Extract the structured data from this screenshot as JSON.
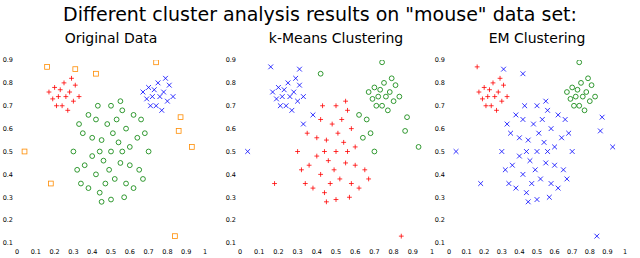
{
  "title": "Different cluster analysis results on \"mouse\" data set:",
  "chart_data": [
    {
      "type": "scatter",
      "title": "Original Data",
      "xlim": [
        0,
        1
      ],
      "ylim": [
        0.1,
        0.9
      ],
      "xticks": [
        0,
        0.1,
        0.2,
        0.3,
        0.4,
        0.5,
        0.6,
        0.7,
        0.8,
        0.9,
        1
      ],
      "yticks": [
        0.1,
        0.2,
        0.3,
        0.4,
        0.5,
        0.6,
        0.7,
        0.8,
        0.9
      ],
      "series": [
        {
          "color": "#ff0000",
          "marker": "plus",
          "x": [
            0.2,
            0.22,
            0.25,
            0.28,
            0.3,
            0.24,
            0.19,
            0.27,
            0.31,
            0.23,
            0.26,
            0.21,
            0.29,
            0.17,
            0.33
          ],
          "values": [
            0.78,
            0.74,
            0.8,
            0.76,
            0.72,
            0.7,
            0.73,
            0.68,
            0.79,
            0.77,
            0.74,
            0.7,
            0.82,
            0.76,
            0.74
          ]
        },
        {
          "color": "#0000ff",
          "marker": "x",
          "x": [
            0.7,
            0.72,
            0.75,
            0.78,
            0.8,
            0.74,
            0.69,
            0.77,
            0.81,
            0.73,
            0.76,
            0.71,
            0.79,
            0.67,
            0.83
          ],
          "values": [
            0.78,
            0.74,
            0.8,
            0.76,
            0.72,
            0.7,
            0.73,
            0.68,
            0.79,
            0.77,
            0.74,
            0.7,
            0.82,
            0.76,
            0.74
          ]
        },
        {
          "color": "#008000",
          "marker": "circle",
          "x": [
            0.5,
            0.45,
            0.55,
            0.4,
            0.6,
            0.48,
            0.52,
            0.35,
            0.65,
            0.42,
            0.58,
            0.3,
            0.7,
            0.5,
            0.5,
            0.38,
            0.62,
            0.34,
            0.66,
            0.44,
            0.56,
            0.46,
            0.54,
            0.36,
            0.64,
            0.42,
            0.58,
            0.32,
            0.68,
            0.47,
            0.53,
            0.4,
            0.6,
            0.44,
            0.56,
            0.38,
            0.62,
            0.49,
            0.51,
            0.33,
            0.67,
            0.45,
            0.55,
            0.57,
            0.43
          ],
          "values": [
            0.5,
            0.55,
            0.45,
            0.48,
            0.52,
            0.62,
            0.38,
            0.58,
            0.42,
            0.4,
            0.6,
            0.5,
            0.5,
            0.7,
            0.29,
            0.66,
            0.34,
            0.36,
            0.64,
            0.32,
            0.68,
            0.46,
            0.54,
            0.44,
            0.56,
            0.64,
            0.36,
            0.42,
            0.58,
            0.36,
            0.64,
            0.56,
            0.44,
            0.5,
            0.5,
            0.34,
            0.66,
            0.42,
            0.58,
            0.62,
            0.38,
            0.28,
            0.72,
            0.3,
            0.7
          ]
        },
        {
          "color": "#ff8c00",
          "marker": "square",
          "x": [
            0.16,
            0.31,
            0.42,
            0.74,
            0.87,
            0.86,
            0.93,
            0.04,
            0.18,
            0.84
          ],
          "values": [
            0.87,
            0.86,
            0.84,
            0.89,
            0.65,
            0.59,
            0.52,
            0.5,
            0.36,
            0.13
          ]
        }
      ]
    },
    {
      "type": "scatter",
      "title": "k-Means Clustering",
      "xlim": [
        0,
        1
      ],
      "ylim": [
        0.1,
        0.9
      ],
      "xticks": [
        0,
        0.1,
        0.2,
        0.3,
        0.4,
        0.5,
        0.6,
        0.7,
        0.8,
        0.9,
        1
      ],
      "yticks": [
        0.1,
        0.2,
        0.3,
        0.4,
        0.5,
        0.6,
        0.7,
        0.8,
        0.9
      ],
      "series": [
        {
          "color": "#0000ff",
          "marker": "x",
          "x": [
            0.2,
            0.22,
            0.25,
            0.28,
            0.3,
            0.24,
            0.19,
            0.27,
            0.31,
            0.23,
            0.26,
            0.21,
            0.29,
            0.17,
            0.33,
            0.16,
            0.31,
            0.04,
            0.38,
            0.33
          ],
          "values": [
            0.78,
            0.74,
            0.8,
            0.76,
            0.72,
            0.7,
            0.73,
            0.68,
            0.79,
            0.77,
            0.74,
            0.7,
            0.82,
            0.76,
            0.74,
            0.87,
            0.86,
            0.5,
            0.66,
            0.62
          ]
        },
        {
          "color": "#008000",
          "marker": "circle",
          "x": [
            0.7,
            0.72,
            0.75,
            0.78,
            0.8,
            0.74,
            0.69,
            0.77,
            0.81,
            0.73,
            0.76,
            0.71,
            0.79,
            0.67,
            0.83,
            0.42,
            0.74,
            0.87,
            0.86,
            0.93,
            0.66,
            0.68,
            0.62,
            0.64,
            0.7
          ],
          "values": [
            0.78,
            0.74,
            0.8,
            0.76,
            0.72,
            0.7,
            0.73,
            0.68,
            0.79,
            0.77,
            0.74,
            0.7,
            0.82,
            0.76,
            0.74,
            0.84,
            0.89,
            0.65,
            0.59,
            0.52,
            0.64,
            0.58,
            0.66,
            0.56,
            0.5
          ]
        },
        {
          "color": "#ff0000",
          "marker": "plus",
          "x": [
            0.5,
            0.45,
            0.55,
            0.4,
            0.6,
            0.48,
            0.52,
            0.35,
            0.65,
            0.42,
            0.58,
            0.3,
            0.5,
            0.5,
            0.62,
            0.34,
            0.44,
            0.56,
            0.46,
            0.54,
            0.36,
            0.42,
            0.58,
            0.32,
            0.47,
            0.53,
            0.4,
            0.6,
            0.44,
            0.56,
            0.38,
            0.49,
            0.51,
            0.67,
            0.45,
            0.55,
            0.57,
            0.43,
            0.18,
            0.84
          ],
          "values": [
            0.5,
            0.55,
            0.45,
            0.48,
            0.52,
            0.62,
            0.38,
            0.58,
            0.42,
            0.4,
            0.6,
            0.5,
            0.7,
            0.29,
            0.34,
            0.36,
            0.32,
            0.68,
            0.46,
            0.54,
            0.44,
            0.64,
            0.36,
            0.42,
            0.36,
            0.64,
            0.56,
            0.44,
            0.5,
            0.5,
            0.34,
            0.42,
            0.58,
            0.38,
            0.28,
            0.72,
            0.3,
            0.7,
            0.36,
            0.13
          ]
        }
      ]
    },
    {
      "type": "scatter",
      "title": "EM Clustering",
      "xlim": [
        0,
        1
      ],
      "ylim": [
        0.1,
        0.9
      ],
      "xticks": [
        0,
        0.1,
        0.2,
        0.3,
        0.4,
        0.5,
        0.6,
        0.7,
        0.8,
        0.9,
        1
      ],
      "yticks": [
        0.1,
        0.2,
        0.3,
        0.4,
        0.5,
        0.6,
        0.7,
        0.8,
        0.9
      ],
      "series": [
        {
          "color": "#ff0000",
          "marker": "plus",
          "x": [
            0.2,
            0.22,
            0.25,
            0.28,
            0.3,
            0.24,
            0.19,
            0.27,
            0.31,
            0.23,
            0.26,
            0.21,
            0.29,
            0.17,
            0.33,
            0.16
          ],
          "values": [
            0.78,
            0.74,
            0.8,
            0.76,
            0.72,
            0.7,
            0.73,
            0.68,
            0.79,
            0.77,
            0.74,
            0.7,
            0.82,
            0.76,
            0.74,
            0.87
          ]
        },
        {
          "color": "#008000",
          "marker": "circle",
          "x": [
            0.7,
            0.72,
            0.75,
            0.78,
            0.8,
            0.74,
            0.69,
            0.77,
            0.81,
            0.73,
            0.76,
            0.71,
            0.79,
            0.67,
            0.83,
            0.74
          ],
          "values": [
            0.78,
            0.74,
            0.8,
            0.76,
            0.72,
            0.7,
            0.73,
            0.68,
            0.79,
            0.77,
            0.74,
            0.7,
            0.82,
            0.76,
            0.74,
            0.89
          ]
        },
        {
          "color": "#0000ff",
          "marker": "x",
          "x": [
            0.5,
            0.45,
            0.55,
            0.4,
            0.6,
            0.48,
            0.52,
            0.35,
            0.65,
            0.42,
            0.58,
            0.3,
            0.7,
            0.5,
            0.5,
            0.38,
            0.62,
            0.34,
            0.66,
            0.44,
            0.56,
            0.46,
            0.54,
            0.36,
            0.64,
            0.42,
            0.58,
            0.32,
            0.68,
            0.47,
            0.53,
            0.4,
            0.6,
            0.44,
            0.56,
            0.38,
            0.62,
            0.49,
            0.51,
            0.33,
            0.67,
            0.45,
            0.55,
            0.57,
            0.43,
            0.31,
            0.42,
            0.87,
            0.86,
            0.93,
            0.04,
            0.18,
            0.84
          ],
          "values": [
            0.5,
            0.55,
            0.45,
            0.48,
            0.52,
            0.62,
            0.38,
            0.58,
            0.42,
            0.4,
            0.6,
            0.5,
            0.5,
            0.7,
            0.29,
            0.66,
            0.34,
            0.36,
            0.64,
            0.32,
            0.68,
            0.46,
            0.54,
            0.44,
            0.56,
            0.64,
            0.36,
            0.42,
            0.58,
            0.36,
            0.64,
            0.56,
            0.44,
            0.5,
            0.5,
            0.34,
            0.66,
            0.42,
            0.58,
            0.62,
            0.38,
            0.28,
            0.72,
            0.3,
            0.7,
            0.86,
            0.84,
            0.65,
            0.59,
            0.52,
            0.5,
            0.36,
            0.13
          ]
        }
      ]
    }
  ]
}
